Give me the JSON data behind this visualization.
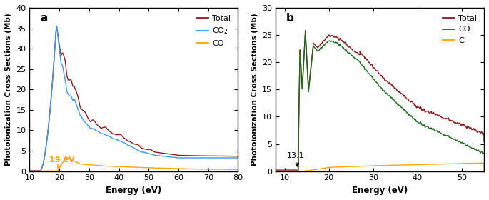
{
  "panel_a": {
    "title": "a",
    "xlabel": "Energy (eV)",
    "ylabel": "Photoionization Cross Sections (Mb)",
    "xlim": [
      10,
      80
    ],
    "ylim": [
      0,
      40
    ],
    "yticks": [
      0,
      5,
      10,
      15,
      20,
      25,
      30,
      35,
      40
    ],
    "xticks": [
      10,
      20,
      30,
      40,
      50,
      60,
      70,
      80
    ],
    "annotation_text": "19 eV",
    "colors": {
      "Total": "#8B1A1A",
      "CO2": "#3399FF",
      "CO": "#FFA500"
    }
  },
  "panel_b": {
    "title": "b",
    "xlabel": "Energy (eV)",
    "ylabel": "Photoionization Cross Sections (Mb)",
    "xlim": [
      8,
      55
    ],
    "ylim": [
      0,
      30
    ],
    "yticks": [
      0,
      5,
      10,
      15,
      20,
      25,
      30
    ],
    "xticks": [
      10,
      20,
      30,
      40,
      50
    ],
    "annotation_text": "13.1",
    "colors": {
      "Total": "#8B1A1A",
      "CO": "#1A6B1A",
      "C": "#FFA500"
    }
  }
}
